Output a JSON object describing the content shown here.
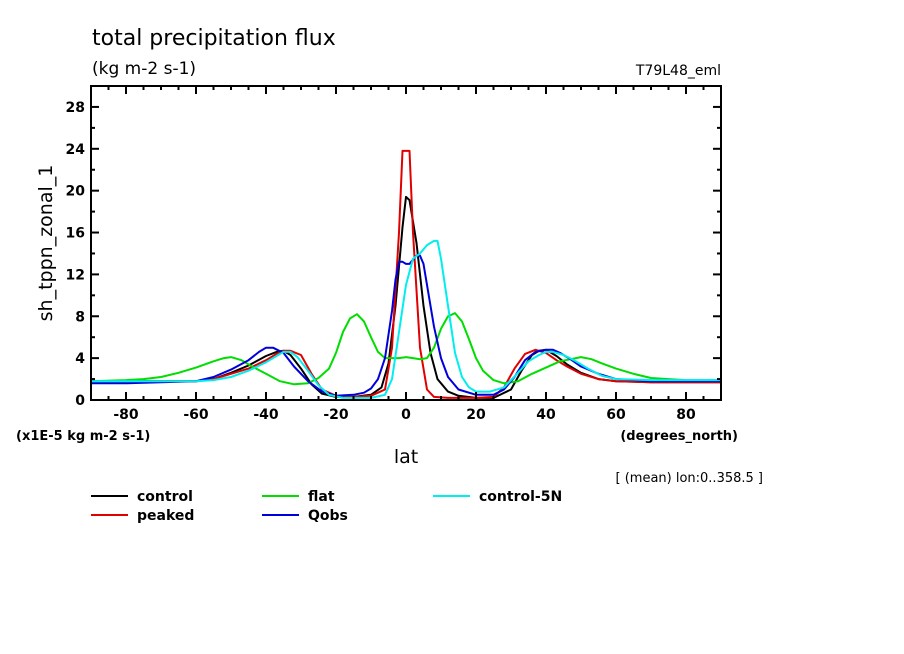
{
  "chart_data": {
    "type": "line",
    "title": "total precipitation flux",
    "subtitle": "(kg m-2 s-1)",
    "tag": "T79L48_eml",
    "xlabel": "lat",
    "xunits": "(degrees_north)",
    "ylabel": "sh_tppn_zonal_1",
    "yunits": "(x1E-5 kg m-2 s-1)",
    "note": "[ (mean) lon:0..358.5 ]",
    "xlim": [
      -90,
      90
    ],
    "ylim": [
      0,
      30
    ],
    "xticks": [
      -80,
      -60,
      -40,
      -20,
      0,
      20,
      40,
      60,
      80
    ],
    "xtick_labels": [
      "-80",
      "-60",
      "-40",
      "-20",
      "0",
      "20",
      "40",
      "60",
      "80"
    ],
    "yticks": [
      0,
      4,
      8,
      12,
      16,
      20,
      24,
      28
    ],
    "ytick_labels": [
      "0",
      "4",
      "8",
      "12",
      "16",
      "20",
      "24",
      "28"
    ],
    "grid": false,
    "legend_position": "bottom",
    "series": [
      {
        "name": "control",
        "color": "#000000",
        "x": [
          -90,
          -80,
          -70,
          -60,
          -55,
          -50,
          -45,
          -40,
          -37,
          -35,
          -33,
          -30,
          -27,
          -24,
          -20,
          -15,
          -10,
          -7,
          -5,
          -3,
          -1,
          0,
          1,
          3,
          5,
          7,
          9,
          12,
          15,
          20,
          25,
          30,
          33,
          36,
          38,
          40,
          43,
          46,
          50,
          55,
          60,
          70,
          80,
          90
        ],
        "y": [
          1.8,
          1.8,
          1.8,
          1.8,
          2.0,
          2.6,
          3.3,
          4.2,
          4.6,
          4.7,
          4.3,
          3.0,
          1.5,
          0.6,
          0.3,
          0.3,
          0.5,
          1.2,
          3.5,
          9.0,
          16.5,
          19.4,
          19.1,
          15.0,
          9.0,
          4.5,
          2.0,
          0.8,
          0.4,
          0.2,
          0.2,
          1.0,
          2.8,
          4.3,
          4.7,
          4.8,
          4.2,
          3.4,
          2.6,
          2.0,
          1.8,
          1.7,
          1.7,
          1.7
        ]
      },
      {
        "name": "peaked",
        "color": "#e00000",
        "x": [
          -90,
          -80,
          -70,
          -60,
          -55,
          -50,
          -45,
          -40,
          -37,
          -35,
          -33,
          -30,
          -27,
          -24,
          -20,
          -15,
          -10,
          -6,
          -4,
          -2,
          -1,
          0,
          1,
          2,
          4,
          6,
          8,
          12,
          15,
          20,
          25,
          28,
          31,
          34,
          37,
          40,
          43,
          46,
          50,
          55,
          60,
          70,
          80,
          90
        ],
        "y": [
          1.8,
          1.8,
          1.8,
          1.8,
          2.0,
          2.5,
          3.0,
          3.8,
          4.4,
          4.7,
          4.7,
          4.3,
          2.5,
          1.0,
          0.4,
          0.3,
          0.4,
          1.0,
          5.0,
          16.0,
          23.8,
          23.8,
          23.8,
          16.0,
          5.0,
          1.0,
          0.3,
          0.2,
          0.2,
          0.2,
          0.3,
          1.2,
          3.0,
          4.4,
          4.8,
          4.5,
          3.8,
          3.2,
          2.5,
          2.0,
          1.8,
          1.7,
          1.7,
          1.7
        ]
      },
      {
        "name": "flat",
        "color": "#00dd00",
        "x": [
          -90,
          -80,
          -75,
          -70,
          -65,
          -60,
          -55,
          -52,
          -50,
          -47,
          -44,
          -40,
          -36,
          -32,
          -28,
          -25,
          -22,
          -20,
          -18,
          -16,
          -14,
          -12,
          -10,
          -8,
          -6,
          -4,
          -2,
          0,
          2,
          4,
          6,
          8,
          10,
          12,
          14,
          16,
          18,
          20,
          22,
          25,
          28,
          32,
          36,
          40,
          44,
          47,
          50,
          53,
          56,
          60,
          65,
          70,
          75,
          80,
          90
        ],
        "y": [
          1.8,
          1.9,
          2.0,
          2.2,
          2.6,
          3.1,
          3.7,
          4.0,
          4.1,
          3.8,
          3.2,
          2.5,
          1.8,
          1.5,
          1.6,
          2.1,
          3.0,
          4.5,
          6.5,
          7.8,
          8.2,
          7.5,
          6.0,
          4.6,
          4.0,
          4.0,
          4.0,
          4.1,
          4.0,
          3.9,
          4.0,
          5.0,
          6.8,
          8.0,
          8.3,
          7.5,
          5.8,
          4.0,
          2.8,
          1.9,
          1.6,
          1.8,
          2.5,
          3.1,
          3.7,
          3.9,
          4.1,
          3.9,
          3.5,
          3.0,
          2.5,
          2.1,
          2.0,
          1.9,
          1.9
        ]
      },
      {
        "name": "Qobs",
        "color": "#0000dd",
        "x": [
          -90,
          -80,
          -70,
          -60,
          -55,
          -50,
          -45,
          -42,
          -40,
          -38,
          -35,
          -32,
          -28,
          -24,
          -20,
          -15,
          -12,
          -10,
          -8,
          -6,
          -4,
          -3,
          -2,
          -1,
          0,
          1,
          2,
          3,
          4,
          5,
          6,
          8,
          10,
          12,
          15,
          20,
          25,
          28,
          31,
          34,
          37,
          40,
          42,
          44,
          47,
          50,
          55,
          60,
          70,
          80,
          90
        ],
        "y": [
          1.6,
          1.6,
          1.7,
          1.8,
          2.2,
          2.9,
          3.8,
          4.6,
          5.0,
          5.0,
          4.5,
          3.2,
          1.8,
          0.8,
          0.4,
          0.5,
          0.7,
          1.1,
          2.0,
          4.0,
          8.5,
          11.5,
          13.2,
          13.2,
          13.0,
          13.0,
          13.4,
          13.8,
          13.8,
          13.0,
          11.0,
          7.0,
          4.0,
          2.2,
          1.0,
          0.5,
          0.5,
          1.0,
          2.2,
          3.8,
          4.6,
          4.8,
          4.8,
          4.5,
          3.9,
          3.2,
          2.5,
          2.0,
          1.8,
          1.8,
          1.8
        ]
      },
      {
        "name": "control-5N",
        "color": "#00eeee",
        "x": [
          -90,
          -80,
          -70,
          -60,
          -55,
          -50,
          -45,
          -40,
          -37,
          -35,
          -33,
          -31,
          -28,
          -25,
          -22,
          -18,
          -14,
          -10,
          -6,
          -4,
          -2,
          0,
          2,
          4,
          6,
          8,
          9,
          10,
          12,
          14,
          16,
          18,
          20,
          24,
          28,
          32,
          35,
          38,
          40,
          42,
          45,
          48,
          52,
          56,
          60,
          70,
          80,
          90
        ],
        "y": [
          1.8,
          1.8,
          1.8,
          1.8,
          1.9,
          2.2,
          2.8,
          3.6,
          4.2,
          4.6,
          4.6,
          4.1,
          2.8,
          1.4,
          0.5,
          0.2,
          0.2,
          0.2,
          0.5,
          2.0,
          6.5,
          11.0,
          13.5,
          14.0,
          14.8,
          15.2,
          15.2,
          13.5,
          9.0,
          4.5,
          2.2,
          1.2,
          0.8,
          0.8,
          1.2,
          2.6,
          3.7,
          4.3,
          4.6,
          4.6,
          4.3,
          3.8,
          3.0,
          2.3,
          2.0,
          1.9,
          1.9,
          1.9
        ]
      }
    ]
  }
}
